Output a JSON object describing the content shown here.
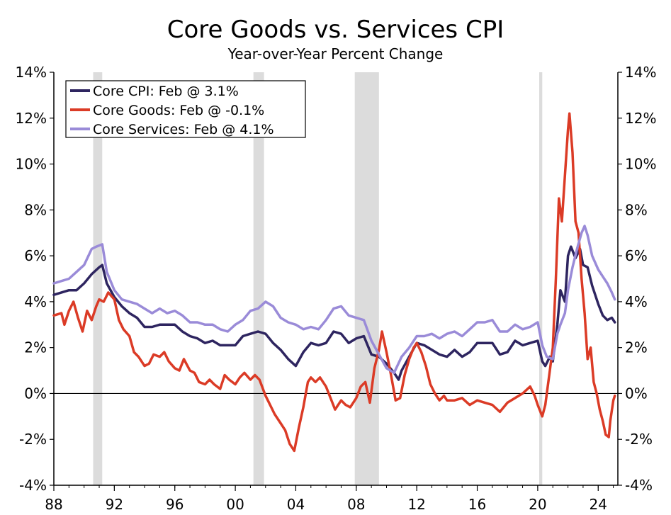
{
  "chart_data": {
    "type": "line",
    "title": "Core Goods vs. Services CPI",
    "subtitle": "Year-over-Year Percent Change",
    "xlabel": "",
    "ylabel": "",
    "x_range": [
      1988.0,
      2025.3
    ],
    "ylim": [
      -4,
      14
    ],
    "y_ticks": [
      -4,
      -2,
      0,
      2,
      4,
      6,
      8,
      10,
      12,
      14
    ],
    "y_tick_labels": [
      "-4%",
      "-2%",
      "0%",
      "2%",
      "4%",
      "6%",
      "8%",
      "10%",
      "12%",
      "14%"
    ],
    "x_ticks": [
      1988,
      1992,
      1996,
      2000,
      2004,
      2008,
      2012,
      2016,
      2020,
      2024
    ],
    "x_tick_labels": [
      "88",
      "92",
      "96",
      "00",
      "04",
      "08",
      "12",
      "16",
      "20",
      "24"
    ],
    "zero_line": true,
    "grid": false,
    "legend_position": "top-left",
    "recessions": [
      [
        1990.6,
        1991.2
      ],
      [
        2001.2,
        2001.9
      ],
      [
        2007.9,
        2009.5
      ],
      [
        2020.1,
        2020.3
      ]
    ],
    "series": [
      {
        "name": "Core CPI: Feb @ 3.1%",
        "color": "#2e2560",
        "points": [
          [
            1988.0,
            4.3
          ],
          [
            1988.5,
            4.4
          ],
          [
            1989.0,
            4.5
          ],
          [
            1989.5,
            4.5
          ],
          [
            1990.0,
            4.8
          ],
          [
            1990.5,
            5.2
          ],
          [
            1991.0,
            5.5
          ],
          [
            1991.2,
            5.6
          ],
          [
            1991.5,
            4.8
          ],
          [
            1992.0,
            4.2
          ],
          [
            1992.5,
            3.8
          ],
          [
            1993.0,
            3.5
          ],
          [
            1993.5,
            3.3
          ],
          [
            1994.0,
            2.9
          ],
          [
            1994.5,
            2.9
          ],
          [
            1995.0,
            3.0
          ],
          [
            1995.5,
            3.0
          ],
          [
            1996.0,
            3.0
          ],
          [
            1996.5,
            2.7
          ],
          [
            1997.0,
            2.5
          ],
          [
            1997.5,
            2.4
          ],
          [
            1998.0,
            2.2
          ],
          [
            1998.5,
            2.3
          ],
          [
            1999.0,
            2.1
          ],
          [
            1999.5,
            2.1
          ],
          [
            2000.0,
            2.1
          ],
          [
            2000.5,
            2.5
          ],
          [
            2001.0,
            2.6
          ],
          [
            2001.5,
            2.7
          ],
          [
            2002.0,
            2.6
          ],
          [
            2002.5,
            2.2
          ],
          [
            2003.0,
            1.9
          ],
          [
            2003.5,
            1.5
          ],
          [
            2004.0,
            1.2
          ],
          [
            2004.5,
            1.8
          ],
          [
            2005.0,
            2.2
          ],
          [
            2005.5,
            2.1
          ],
          [
            2006.0,
            2.2
          ],
          [
            2006.5,
            2.7
          ],
          [
            2007.0,
            2.6
          ],
          [
            2007.5,
            2.2
          ],
          [
            2008.0,
            2.4
          ],
          [
            2008.5,
            2.5
          ],
          [
            2009.0,
            1.7
          ],
          [
            2009.5,
            1.6
          ],
          [
            2010.0,
            1.3
          ],
          [
            2010.5,
            0.9
          ],
          [
            2010.8,
            0.6
          ],
          [
            2011.0,
            1.0
          ],
          [
            2011.5,
            1.6
          ],
          [
            2012.0,
            2.2
          ],
          [
            2012.5,
            2.1
          ],
          [
            2013.0,
            1.9
          ],
          [
            2013.5,
            1.7
          ],
          [
            2014.0,
            1.6
          ],
          [
            2014.5,
            1.9
          ],
          [
            2015.0,
            1.6
          ],
          [
            2015.5,
            1.8
          ],
          [
            2016.0,
            2.2
          ],
          [
            2016.5,
            2.2
          ],
          [
            2017.0,
            2.2
          ],
          [
            2017.5,
            1.7
          ],
          [
            2018.0,
            1.8
          ],
          [
            2018.5,
            2.3
          ],
          [
            2019.0,
            2.1
          ],
          [
            2019.5,
            2.2
          ],
          [
            2020.0,
            2.3
          ],
          [
            2020.3,
            1.4
          ],
          [
            2020.5,
            1.2
          ],
          [
            2020.8,
            1.6
          ],
          [
            2021.0,
            1.4
          ],
          [
            2021.3,
            3.0
          ],
          [
            2021.5,
            4.5
          ],
          [
            2021.8,
            4.0
          ],
          [
            2022.0,
            6.0
          ],
          [
            2022.2,
            6.4
          ],
          [
            2022.5,
            5.9
          ],
          [
            2022.8,
            6.3
          ],
          [
            2023.0,
            5.6
          ],
          [
            2023.3,
            5.5
          ],
          [
            2023.6,
            4.7
          ],
          [
            2024.0,
            3.9
          ],
          [
            2024.3,
            3.4
          ],
          [
            2024.6,
            3.2
          ],
          [
            2024.9,
            3.3
          ],
          [
            2025.1,
            3.1
          ]
        ]
      },
      {
        "name": "Core Goods: Feb @ -0.1%",
        "color": "#db3b26",
        "points": [
          [
            1988.0,
            3.4
          ],
          [
            1988.5,
            3.5
          ],
          [
            1988.7,
            3.0
          ],
          [
            1989.0,
            3.6
          ],
          [
            1989.3,
            4.0
          ],
          [
            1989.6,
            3.3
          ],
          [
            1989.9,
            2.7
          ],
          [
            1990.2,
            3.6
          ],
          [
            1990.5,
            3.2
          ],
          [
            1990.8,
            3.8
          ],
          [
            1991.0,
            4.1
          ],
          [
            1991.3,
            4.0
          ],
          [
            1991.6,
            4.4
          ],
          [
            1992.0,
            4.1
          ],
          [
            1992.3,
            3.2
          ],
          [
            1992.6,
            2.8
          ],
          [
            1993.0,
            2.5
          ],
          [
            1993.3,
            1.8
          ],
          [
            1993.6,
            1.6
          ],
          [
            1994.0,
            1.2
          ],
          [
            1994.3,
            1.3
          ],
          [
            1994.6,
            1.7
          ],
          [
            1995.0,
            1.6
          ],
          [
            1995.3,
            1.8
          ],
          [
            1995.6,
            1.4
          ],
          [
            1996.0,
            1.1
          ],
          [
            1996.3,
            1.0
          ],
          [
            1996.6,
            1.5
          ],
          [
            1997.0,
            1.0
          ],
          [
            1997.3,
            0.9
          ],
          [
            1997.6,
            0.5
          ],
          [
            1998.0,
            0.4
          ],
          [
            1998.3,
            0.6
          ],
          [
            1998.6,
            0.4
          ],
          [
            1999.0,
            0.2
          ],
          [
            1999.3,
            0.8
          ],
          [
            1999.6,
            0.6
          ],
          [
            2000.0,
            0.4
          ],
          [
            2000.3,
            0.7
          ],
          [
            2000.6,
            0.9
          ],
          [
            2001.0,
            0.6
          ],
          [
            2001.3,
            0.8
          ],
          [
            2001.6,
            0.6
          ],
          [
            2002.0,
            -0.1
          ],
          [
            2002.3,
            -0.5
          ],
          [
            2002.6,
            -0.9
          ],
          [
            2003.0,
            -1.3
          ],
          [
            2003.3,
            -1.6
          ],
          [
            2003.6,
            -2.2
          ],
          [
            2003.9,
            -2.5
          ],
          [
            2004.2,
            -1.5
          ],
          [
            2004.5,
            -0.6
          ],
          [
            2004.8,
            0.5
          ],
          [
            2005.0,
            0.7
          ],
          [
            2005.3,
            0.5
          ],
          [
            2005.6,
            0.7
          ],
          [
            2006.0,
            0.3
          ],
          [
            2006.3,
            -0.2
          ],
          [
            2006.6,
            -0.7
          ],
          [
            2007.0,
            -0.3
          ],
          [
            2007.3,
            -0.5
          ],
          [
            2007.6,
            -0.6
          ],
          [
            2008.0,
            -0.2
          ],
          [
            2008.3,
            0.3
          ],
          [
            2008.6,
            0.5
          ],
          [
            2008.9,
            -0.4
          ],
          [
            2009.2,
            1.1
          ],
          [
            2009.5,
            1.9
          ],
          [
            2009.7,
            2.7
          ],
          [
            2010.0,
            1.8
          ],
          [
            2010.3,
            0.8
          ],
          [
            2010.6,
            -0.3
          ],
          [
            2010.9,
            -0.2
          ],
          [
            2011.2,
            0.8
          ],
          [
            2011.5,
            1.5
          ],
          [
            2011.8,
            2.0
          ],
          [
            2012.0,
            2.2
          ],
          [
            2012.3,
            1.8
          ],
          [
            2012.6,
            1.2
          ],
          [
            2012.9,
            0.4
          ],
          [
            2013.2,
            0.0
          ],
          [
            2013.5,
            -0.3
          ],
          [
            2013.8,
            -0.1
          ],
          [
            2014.0,
            -0.3
          ],
          [
            2014.5,
            -0.3
          ],
          [
            2015.0,
            -0.2
          ],
          [
            2015.5,
            -0.5
          ],
          [
            2016.0,
            -0.3
          ],
          [
            2016.5,
            -0.4
          ],
          [
            2017.0,
            -0.5
          ],
          [
            2017.5,
            -0.8
          ],
          [
            2018.0,
            -0.4
          ],
          [
            2018.5,
            -0.2
          ],
          [
            2019.0,
            0.0
          ],
          [
            2019.5,
            0.3
          ],
          [
            2019.8,
            -0.1
          ],
          [
            2020.0,
            -0.5
          ],
          [
            2020.3,
            -1.0
          ],
          [
            2020.5,
            -0.5
          ],
          [
            2020.8,
            1.0
          ],
          [
            2021.0,
            2.0
          ],
          [
            2021.2,
            5.0
          ],
          [
            2021.4,
            8.5
          ],
          [
            2021.6,
            7.5
          ],
          [
            2021.8,
            9.5
          ],
          [
            2022.0,
            11.5
          ],
          [
            2022.1,
            12.2
          ],
          [
            2022.3,
            10.5
          ],
          [
            2022.5,
            7.5
          ],
          [
            2022.7,
            7.0
          ],
          [
            2022.9,
            5.0
          ],
          [
            2023.1,
            3.5
          ],
          [
            2023.3,
            1.5
          ],
          [
            2023.5,
            2.0
          ],
          [
            2023.7,
            0.5
          ],
          [
            2023.9,
            0.0
          ],
          [
            2024.1,
            -0.7
          ],
          [
            2024.3,
            -1.2
          ],
          [
            2024.5,
            -1.8
          ],
          [
            2024.7,
            -1.9
          ],
          [
            2024.8,
            -1.2
          ],
          [
            2025.0,
            -0.3
          ],
          [
            2025.1,
            -0.1
          ]
        ]
      },
      {
        "name": "Core Services: Feb @ 4.1%",
        "color": "#9a8bd8",
        "points": [
          [
            1988.0,
            4.8
          ],
          [
            1988.5,
            4.9
          ],
          [
            1989.0,
            5.0
          ],
          [
            1989.5,
            5.3
          ],
          [
            1990.0,
            5.6
          ],
          [
            1990.5,
            6.3
          ],
          [
            1990.8,
            6.4
          ],
          [
            1991.2,
            6.5
          ],
          [
            1991.5,
            5.3
          ],
          [
            1992.0,
            4.5
          ],
          [
            1992.5,
            4.1
          ],
          [
            1993.0,
            4.0
          ],
          [
            1993.5,
            3.9
          ],
          [
            1994.0,
            3.7
          ],
          [
            1994.5,
            3.5
          ],
          [
            1995.0,
            3.7
          ],
          [
            1995.5,
            3.5
          ],
          [
            1996.0,
            3.6
          ],
          [
            1996.5,
            3.4
          ],
          [
            1997.0,
            3.1
          ],
          [
            1997.5,
            3.1
          ],
          [
            1998.0,
            3.0
          ],
          [
            1998.5,
            3.0
          ],
          [
            1999.0,
            2.8
          ],
          [
            1999.5,
            2.7
          ],
          [
            2000.0,
            3.0
          ],
          [
            2000.5,
            3.2
          ],
          [
            2001.0,
            3.6
          ],
          [
            2001.5,
            3.7
          ],
          [
            2002.0,
            4.0
          ],
          [
            2002.5,
            3.8
          ],
          [
            2003.0,
            3.3
          ],
          [
            2003.5,
            3.1
          ],
          [
            2004.0,
            3.0
          ],
          [
            2004.5,
            2.8
          ],
          [
            2005.0,
            2.9
          ],
          [
            2005.5,
            2.8
          ],
          [
            2006.0,
            3.2
          ],
          [
            2006.5,
            3.7
          ],
          [
            2007.0,
            3.8
          ],
          [
            2007.5,
            3.4
          ],
          [
            2008.0,
            3.3
          ],
          [
            2008.5,
            3.2
          ],
          [
            2009.0,
            2.3
          ],
          [
            2009.5,
            1.7
          ],
          [
            2010.0,
            1.1
          ],
          [
            2010.5,
            0.9
          ],
          [
            2011.0,
            1.6
          ],
          [
            2011.5,
            2.0
          ],
          [
            2012.0,
            2.5
          ],
          [
            2012.5,
            2.5
          ],
          [
            2013.0,
            2.6
          ],
          [
            2013.5,
            2.4
          ],
          [
            2014.0,
            2.6
          ],
          [
            2014.5,
            2.7
          ],
          [
            2015.0,
            2.5
          ],
          [
            2015.5,
            2.8
          ],
          [
            2016.0,
            3.1
          ],
          [
            2016.5,
            3.1
          ],
          [
            2017.0,
            3.2
          ],
          [
            2017.5,
            2.7
          ],
          [
            2018.0,
            2.7
          ],
          [
            2018.5,
            3.0
          ],
          [
            2019.0,
            2.8
          ],
          [
            2019.5,
            2.9
          ],
          [
            2020.0,
            3.1
          ],
          [
            2020.3,
            2.1
          ],
          [
            2020.6,
            1.6
          ],
          [
            2021.0,
            1.5
          ],
          [
            2021.3,
            2.6
          ],
          [
            2021.5,
            3.0
          ],
          [
            2021.8,
            3.5
          ],
          [
            2022.0,
            4.5
          ],
          [
            2022.3,
            5.5
          ],
          [
            2022.6,
            6.3
          ],
          [
            2022.9,
            7.0
          ],
          [
            2023.1,
            7.3
          ],
          [
            2023.3,
            6.9
          ],
          [
            2023.6,
            6.0
          ],
          [
            2024.0,
            5.4
          ],
          [
            2024.3,
            5.1
          ],
          [
            2024.6,
            4.8
          ],
          [
            2024.9,
            4.4
          ],
          [
            2025.1,
            4.1
          ]
        ]
      }
    ]
  }
}
